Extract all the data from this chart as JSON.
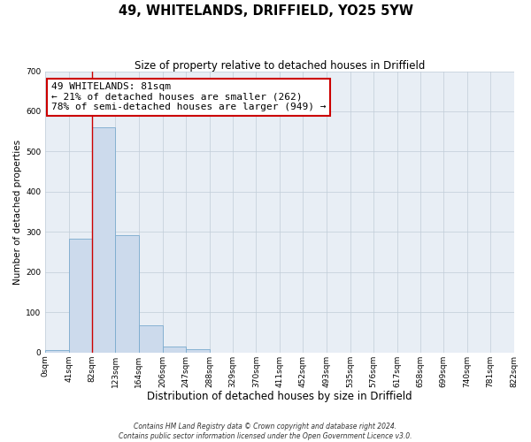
{
  "title": "49, WHITELANDS, DRIFFIELD, YO25 5YW",
  "subtitle": "Size of property relative to detached houses in Driffield",
  "xlabel": "Distribution of detached houses by size in Driffield",
  "ylabel": "Number of detached properties",
  "bin_edges": [
    0,
    41,
    82,
    123,
    164,
    206,
    247,
    288,
    329,
    370,
    411,
    452,
    493,
    535,
    576,
    617,
    658,
    699,
    740,
    781,
    822
  ],
  "bin_labels": [
    "0sqm",
    "41sqm",
    "82sqm",
    "123sqm",
    "164sqm",
    "206sqm",
    "247sqm",
    "288sqm",
    "329sqm",
    "370sqm",
    "411sqm",
    "452sqm",
    "493sqm",
    "535sqm",
    "576sqm",
    "617sqm",
    "658sqm",
    "699sqm",
    "740sqm",
    "781sqm",
    "822sqm"
  ],
  "bar_heights": [
    6,
    282,
    560,
    292,
    68,
    14,
    8,
    0,
    0,
    0,
    0,
    0,
    0,
    0,
    0,
    0,
    0,
    0,
    0,
    0
  ],
  "bar_color": "#ccdaec",
  "bar_edge_color": "#7aaace",
  "property_line_x": 82,
  "property_line_color": "#cc0000",
  "ylim": [
    0,
    700
  ],
  "yticks": [
    0,
    100,
    200,
    300,
    400,
    500,
    600,
    700
  ],
  "annotation_title": "49 WHITELANDS: 81sqm",
  "annotation_line1": "← 21% of detached houses are smaller (262)",
  "annotation_line2": "78% of semi-detached houses are larger (949) →",
  "annotation_box_color": "#cc0000",
  "footer_line1": "Contains HM Land Registry data © Crown copyright and database right 2024.",
  "footer_line2": "Contains public sector information licensed under the Open Government Licence v3.0.",
  "plot_bg_color": "#e8eef5",
  "grid_color": "#c0ccd8",
  "title_fontsize": 10.5,
  "subtitle_fontsize": 8.5,
  "ylabel_fontsize": 7.5,
  "xlabel_fontsize": 8.5,
  "tick_fontsize": 6.5,
  "annotation_fontsize": 8.0,
  "footer_fontsize": 5.5
}
